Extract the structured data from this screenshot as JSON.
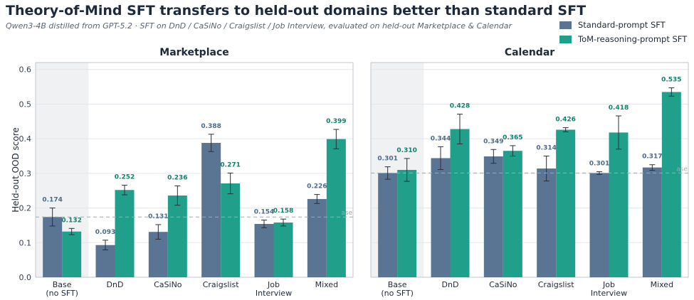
{
  "title": "Theory-of-Mind SFT transfers to held-out domains better than standard SFT",
  "subtitle": "Qwen3-4B distilled from GPT-5.2 · SFT on DnD / CaSiNo / Craigslist / Job Interview, evaluated on held-out Marketplace & Calendar",
  "colors": {
    "standard": "#5a7593",
    "tom": "#20a08a",
    "base_shade": "#f0f1f3",
    "baseline": "#9aaab9"
  },
  "legend": [
    {
      "name": "Standard-prompt SFT",
      "color": "#5a7593"
    },
    {
      "name": "ToM-reasoning-prompt SFT",
      "color": "#20a08a"
    }
  ],
  "chart_data": [
    {
      "type": "bar",
      "title": "Marketplace",
      "ylabel": "Held-out OOD score",
      "ylim": [
        0,
        0.62
      ],
      "yticks": [
        "0.0",
        "0.1",
        "0.2",
        "0.3",
        "0.4",
        "0.5",
        "0.6"
      ],
      "categories": [
        "Base\n(no SFT)",
        "DnD",
        "CaSiNo",
        "Craigslist",
        "Job\nInterview",
        "Mixed"
      ],
      "baseline": {
        "value": 0.174,
        "label": "ase"
      },
      "series": [
        {
          "name": "Standard-prompt SFT",
          "values": [
            0.174,
            0.093,
            0.131,
            0.388,
            0.154,
            0.226
          ],
          "labels": [
            "0.174",
            "0.093",
            "0.131",
            "0.388",
            "0.154",
            "0.226"
          ],
          "err": [
            0.026,
            0.014,
            0.021,
            0.025,
            0.011,
            0.013
          ]
        },
        {
          "name": "ToM-reasoning-prompt SFT",
          "values": [
            0.132,
            0.252,
            0.236,
            0.271,
            0.158,
            0.399
          ],
          "labels": [
            "0.132",
            "0.252",
            "0.236",
            "0.271",
            "0.158",
            "0.399"
          ],
          "err": [
            0.009,
            0.014,
            0.028,
            0.03,
            0.01,
            0.028
          ]
        }
      ],
      "grid": true
    },
    {
      "type": "bar",
      "title": "Calendar",
      "ylabel": "",
      "ylim": [
        0,
        0.62
      ],
      "categories": [
        "Base\n(no SFT)",
        "DnD",
        "CaSiNo",
        "Craigslist",
        "Job\nInterview",
        "Mixed"
      ],
      "baseline": {
        "value": 0.301,
        "label": "ase"
      },
      "series": [
        {
          "name": "Standard-prompt SFT",
          "values": [
            0.301,
            0.344,
            0.349,
            0.314,
            0.301,
            0.317
          ],
          "labels": [
            "0.301",
            "0.344",
            "0.349",
            "0.314",
            "0.301",
            "0.317"
          ],
          "err": [
            0.018,
            0.033,
            0.02,
            0.036,
            0.004,
            0.008
          ]
        },
        {
          "name": "ToM-reasoning-prompt SFT",
          "values": [
            0.31,
            0.428,
            0.365,
            0.426,
            0.418,
            0.535
          ],
          "labels": [
            "0.310",
            "0.428",
            "0.365",
            "0.426",
            "0.418",
            "0.535"
          ],
          "err": [
            0.033,
            0.043,
            0.015,
            0.006,
            0.048,
            0.012
          ]
        }
      ],
      "grid": true
    }
  ]
}
